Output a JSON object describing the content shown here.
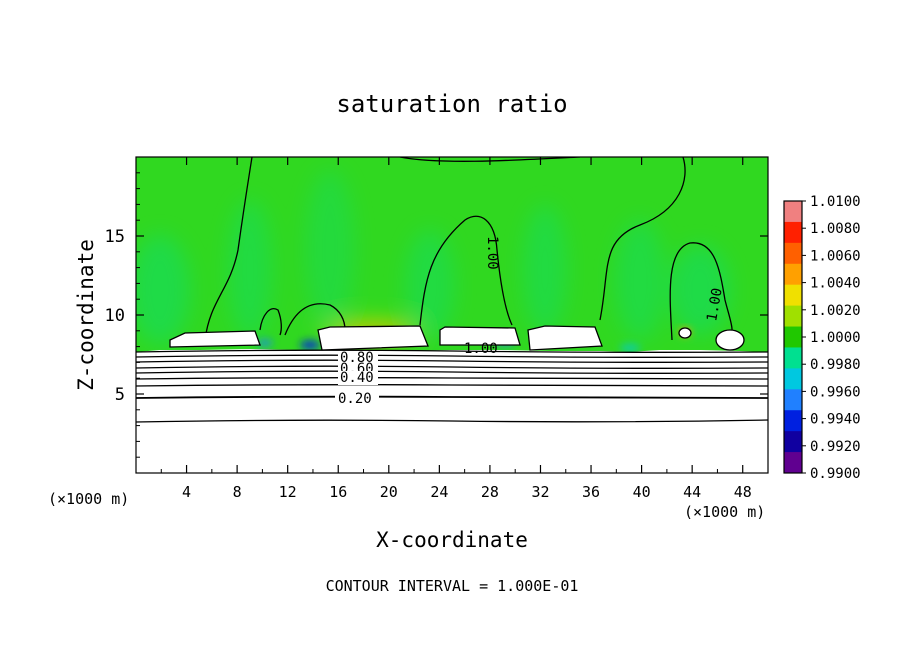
{
  "chart_data": {
    "type": "heatmap",
    "title": "saturation ratio",
    "xlabel": "X-coordinate",
    "ylabel": "Z-coordinate",
    "x_unit": "(×1000 m)",
    "x_unit_right": "(×1000 m)",
    "xlim": [
      0,
      50
    ],
    "ylim": [
      0,
      20
    ],
    "x_ticks": [
      4,
      8,
      12,
      16,
      20,
      24,
      28,
      32,
      36,
      40,
      44,
      48
    ],
    "y_ticks": [
      5,
      10,
      15
    ],
    "footer": "CONTOUR INTERVAL = 1.000E-01",
    "colorbar": {
      "min": 0.99,
      "max": 1.01,
      "labels": [
        "1.0100",
        "1.0080",
        "1.0060",
        "1.0040",
        "1.0020",
        "1.0000",
        "0.9980",
        "0.9960",
        "0.9940",
        "0.9920",
        "0.9900"
      ],
      "colors": [
        "#f08080",
        "#ff2000",
        "#ff6000",
        "#ffa000",
        "#f0e000",
        "#a0e000",
        "#20c800",
        "#00e090",
        "#00c8e0",
        "#2080ff",
        "#0020e0",
        "#1000a0",
        "#600090"
      ]
    },
    "background_value_color": "#30d820",
    "contour_labels": [
      {
        "text": "1.00",
        "x": 28.0,
        "z": 13.8
      },
      {
        "text": "1.00",
        "x": 46.0,
        "z": 9.5
      },
      {
        "text": "1.00",
        "x": 27.5,
        "z": 8.3
      },
      {
        "text": "0.80",
        "x": 18.0,
        "z": 7.5
      },
      {
        "text": "0.60",
        "x": 18.0,
        "z": 7.2
      },
      {
        "text": "0.40",
        "x": 18.0,
        "z": 6.3
      },
      {
        "text": "0.20",
        "x": 17.5,
        "z": 4.8
      }
    ]
  }
}
